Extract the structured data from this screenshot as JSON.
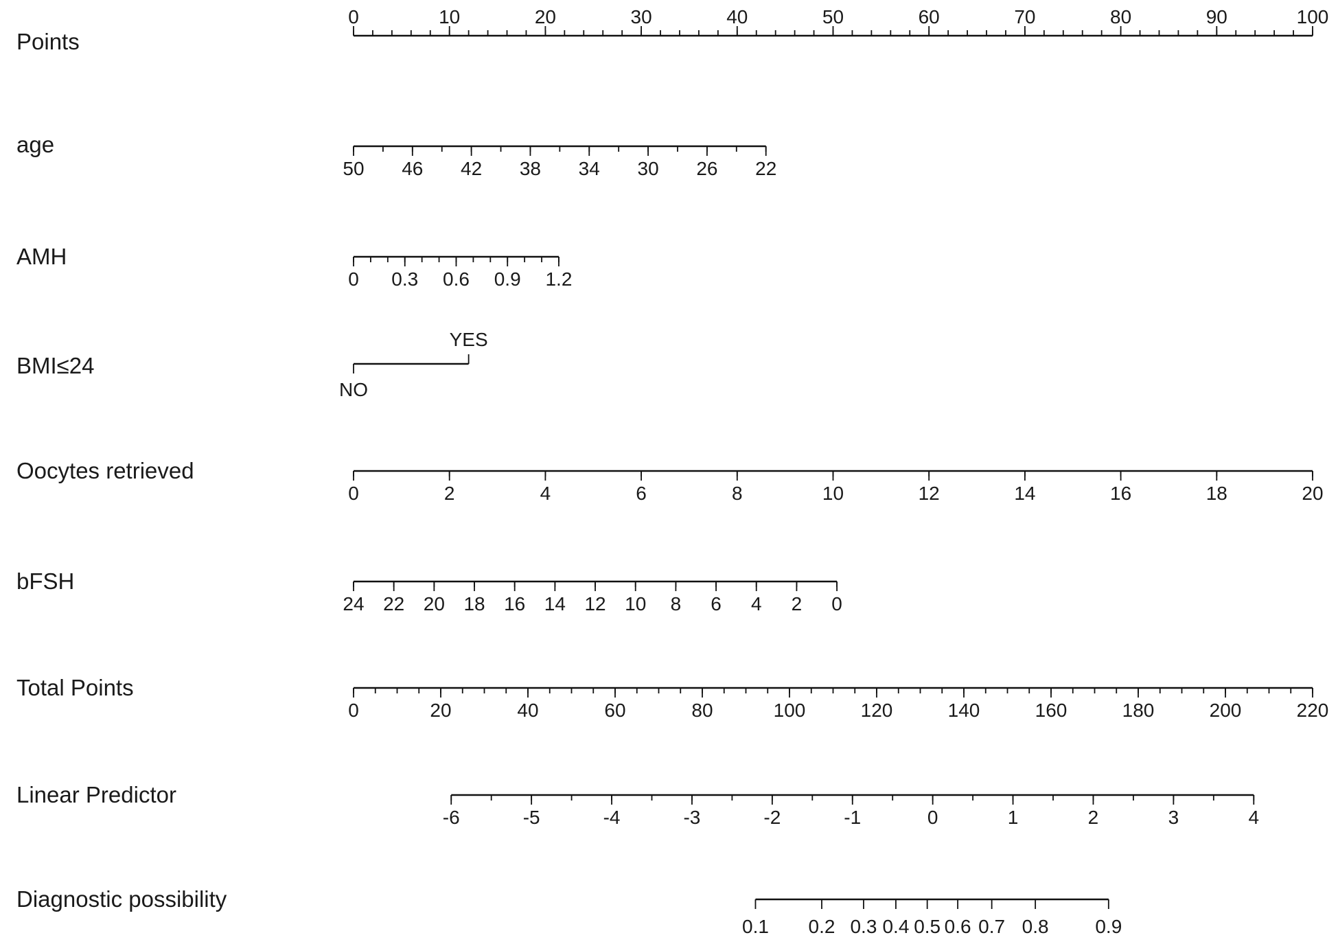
{
  "chart_data": {
    "type": "nomogram",
    "title": "",
    "rows": [
      {
        "label": "Points",
        "min": 0,
        "max": 100,
        "labels": [
          0,
          10,
          20,
          30,
          40,
          50,
          60,
          70,
          80,
          90,
          100
        ],
        "minor_step": 2,
        "label_position": "above",
        "scale_points": [
          0,
          100
        ]
      },
      {
        "label": "age",
        "min": 22,
        "max": 50,
        "labels": [
          50,
          46,
          42,
          38,
          34,
          30,
          26,
          22
        ],
        "minor_step": 2,
        "label_position": "below",
        "points_map": [
          {
            "value": 50,
            "points": 0
          },
          {
            "value": 22,
            "points": 43
          }
        ]
      },
      {
        "label": "AMH",
        "min": 0,
        "max": 1.2,
        "labels": [
          "0",
          "0.3",
          "0.6",
          "0.9",
          "1.2"
        ],
        "minor_step": 0.1,
        "label_position": "below",
        "points_map": [
          {
            "value": 0,
            "points": 0
          },
          {
            "value": 1.2,
            "points": 21.4
          }
        ]
      },
      {
        "label": "BMI≤24",
        "type": "categorical",
        "categories": [
          {
            "label": "NO",
            "points": 0,
            "position": "below"
          },
          {
            "label": "YES",
            "points": 12,
            "position": "above"
          }
        ]
      },
      {
        "label": "Oocytes  retrieved",
        "min": 0,
        "max": 20,
        "labels": [
          0,
          2,
          4,
          6,
          8,
          10,
          12,
          14,
          16,
          18,
          20
        ],
        "minor_step": 2,
        "label_position": "below",
        "points_map": [
          {
            "value": 0,
            "points": 0
          },
          {
            "value": 20,
            "points": 100
          }
        ]
      },
      {
        "label": "bFSH",
        "min": 0,
        "max": 24,
        "labels": [
          24,
          22,
          20,
          18,
          16,
          14,
          12,
          10,
          8,
          6,
          4,
          2,
          0
        ],
        "minor_step": 2,
        "label_position": "below",
        "points_map": [
          {
            "value": 24,
            "points": 0
          },
          {
            "value": 0,
            "points": 50.4
          }
        ]
      },
      {
        "label": "Total Points",
        "min": 0,
        "max": 220,
        "labels": [
          0,
          20,
          40,
          60,
          80,
          100,
          120,
          140,
          160,
          180,
          200,
          220
        ],
        "minor_step": 5,
        "label_position": "below",
        "scale_points": [
          0,
          100
        ]
      },
      {
        "label": "Linear Predictor",
        "min": -6,
        "max": 4,
        "labels": [
          -6,
          -5,
          -4,
          -3,
          -2,
          -1,
          0,
          1,
          2,
          3,
          4
        ],
        "minor_step": 0.5,
        "label_position": "below",
        "total_points_map": [
          {
            "value": -6,
            "total_points": 22.4
          },
          {
            "value": 4,
            "total_points": 206.5
          }
        ]
      },
      {
        "label": "Diagnostic possibility",
        "type": "probability",
        "labels": [
          "0.1",
          "0.2",
          "0.3",
          "0.4",
          "0.5",
          "0.6",
          "0.7",
          "0.8",
          "0.9"
        ],
        "label_position": "below",
        "total_points_map": [
          {
            "value": "0.1",
            "total_points": 92.2
          },
          {
            "value": "0.2",
            "total_points": 107.4
          },
          {
            "value": "0.3",
            "total_points": 117.0
          },
          {
            "value": "0.4",
            "total_points": 124.4
          },
          {
            "value": "0.5",
            "total_points": 131.6
          },
          {
            "value": "0.6",
            "total_points": 138.6
          },
          {
            "value": "0.7",
            "total_points": 146.4
          },
          {
            "value": "0.8",
            "total_points": 156.4
          },
          {
            "value": "0.9",
            "total_points": 173.2
          }
        ]
      }
    ]
  }
}
